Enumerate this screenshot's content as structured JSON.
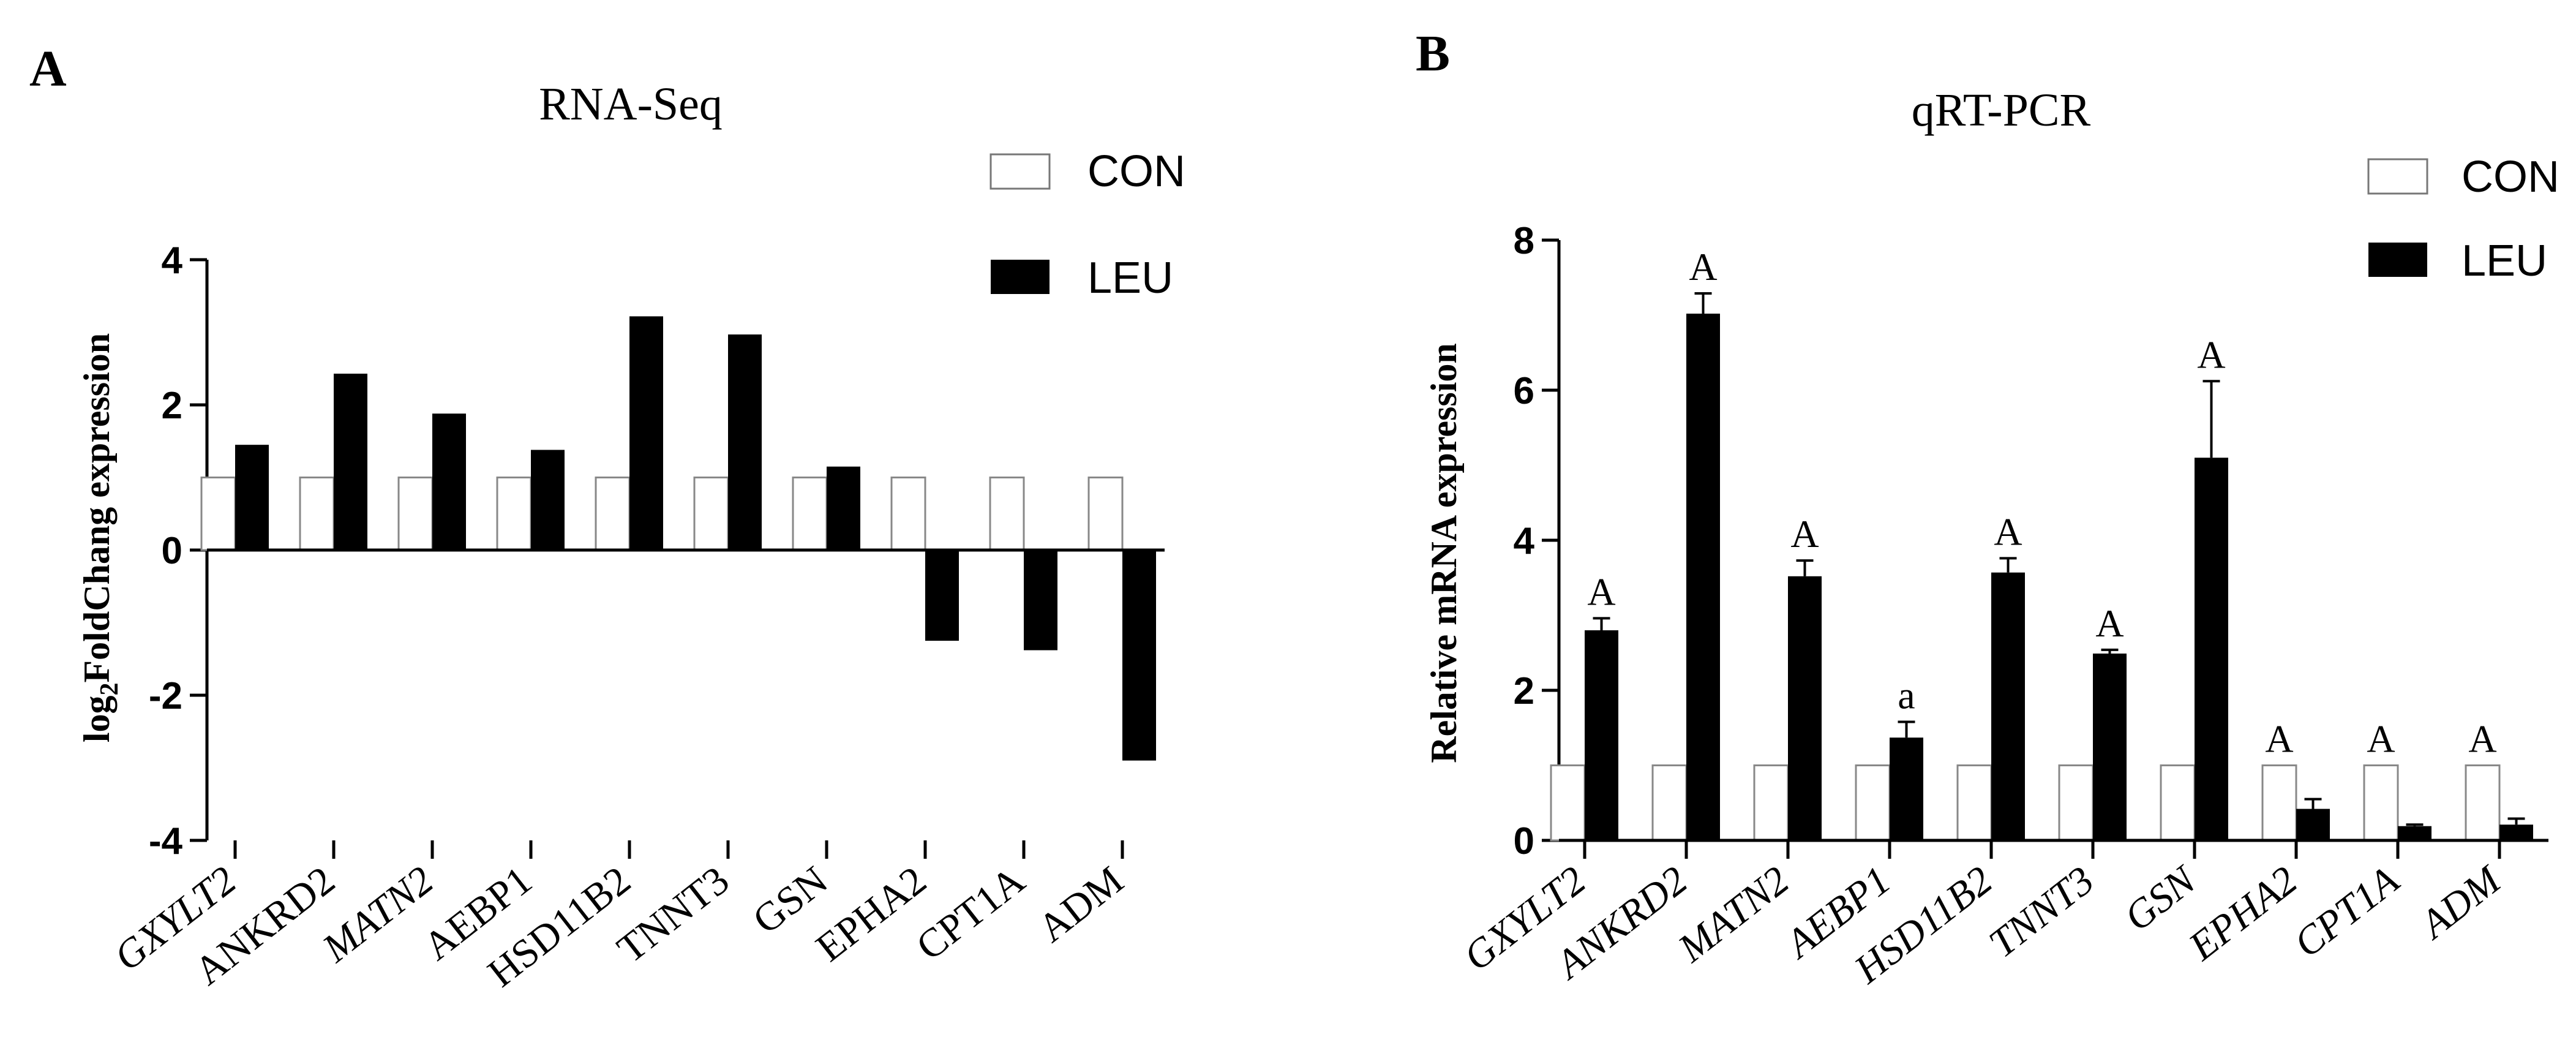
{
  "panels": [
    {
      "label": "A",
      "legend": {
        "con": "CON",
        "leu": "LEU"
      }
    },
    {
      "label": "B",
      "legend": {
        "con": "CON",
        "leu": "LEU"
      }
    }
  ],
  "colors": {
    "con_fill": "#ffffff",
    "leu_fill": "#000000",
    "axis": "#000000"
  },
  "chart_data": [
    {
      "type": "bar",
      "title": "RNA-Seq",
      "xlabel": "",
      "ylabel": "log2FoldChang expression",
      "ylabel_main": "log",
      "ylabel_sub": "2",
      "ylabel_rest": "FoldChang expression",
      "ylim": [
        -4,
        4
      ],
      "yticks": [
        4,
        2,
        0,
        -2,
        -4
      ],
      "ytick_labels": [
        "4",
        "2",
        "0",
        "-2",
        "-4"
      ],
      "categories": [
        "GXYLT2",
        "ANKRD2",
        "MATN2",
        "AEBP1",
        "HSD11B2",
        "TNNT3",
        "GSN",
        "EPHA2",
        "CPT1A",
        "ADM"
      ],
      "category_italic": [
        true,
        false,
        true,
        false,
        false,
        false,
        false,
        false,
        false,
        false
      ],
      "series": [
        {
          "name": "CON",
          "values": [
            1,
            1,
            1,
            1,
            1,
            1,
            1,
            1,
            1,
            1
          ]
        },
        {
          "name": "LEU",
          "values": [
            1.45,
            2.43,
            1.88,
            1.38,
            3.22,
            2.97,
            1.15,
            -1.25,
            -1.38,
            -2.9
          ]
        }
      ],
      "legend_position": "top-right"
    },
    {
      "type": "bar",
      "title": "qRT-PCR",
      "xlabel": "",
      "ylabel": "Relative mRNA expression",
      "ylim": [
        0,
        8
      ],
      "yticks": [
        8,
        6,
        4,
        2,
        0
      ],
      "ytick_labels": [
        "8",
        "6",
        "4",
        "2",
        "0"
      ],
      "categories": [
        "GXYLT2",
        "ANKRD2",
        "MATN2",
        "AEBP1",
        "HSD11B2",
        "TNNT3",
        "GSN",
        "EPHA2",
        "CPT1A",
        "ADM"
      ],
      "category_italic": [
        true,
        true,
        true,
        true,
        true,
        true,
        true,
        true,
        true,
        true
      ],
      "series": [
        {
          "name": "CON",
          "values": [
            1,
            1,
            1,
            1,
            1,
            1,
            1,
            1,
            1,
            1
          ]
        },
        {
          "name": "LEU",
          "values": [
            2.8,
            7.02,
            3.52,
            1.37,
            3.57,
            2.49,
            5.1,
            0.42,
            0.19,
            0.21
          ],
          "errors": [
            0.16,
            0.27,
            0.21,
            0.21,
            0.19,
            0.05,
            1.02,
            0.13,
            0.02,
            0.08
          ]
        }
      ],
      "annotations": [
        "A",
        "A",
        "A",
        "a",
        "A",
        "A",
        "A",
        "A",
        "A",
        "A"
      ],
      "annotation_over": [
        "LEU",
        "LEU",
        "LEU",
        "LEU",
        "LEU",
        "LEU",
        "LEU",
        "CON",
        "CON",
        "CON"
      ],
      "legend_position": "top-right"
    }
  ]
}
